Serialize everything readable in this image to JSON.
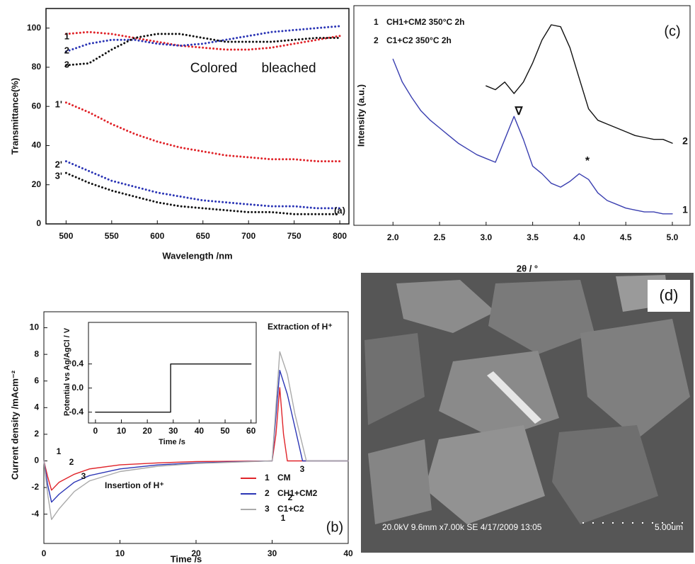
{
  "chart_data": [
    {
      "type": "line",
      "label": "(a)",
      "xlabel": "Wavelength /nm",
      "ylabel": "Transmittance(%)",
      "xlim": [
        478,
        810
      ],
      "ylim": [
        0,
        110
      ],
      "xticks": [
        500,
        550,
        600,
        650,
        700,
        750,
        800
      ],
      "yticks": [
        0,
        20,
        40,
        60,
        80,
        100
      ],
      "line_style": "dotted",
      "inset_labels": [
        "Colored",
        "bleached"
      ],
      "x": [
        500,
        525,
        550,
        575,
        600,
        625,
        650,
        675,
        700,
        725,
        750,
        775,
        800
      ],
      "series": [
        {
          "name": "1",
          "color": "#e0242a",
          "values": [
            97,
            98,
            97,
            95,
            93,
            91,
            90,
            89,
            89,
            90,
            92,
            94,
            96
          ]
        },
        {
          "name": "2",
          "color": "#2b35b5",
          "values": [
            88,
            92,
            94,
            94,
            92,
            91,
            92,
            94,
            96,
            98,
            99,
            100,
            101
          ]
        },
        {
          "name": "3",
          "color": "#111111",
          "values": [
            81,
            82,
            89,
            95,
            97,
            97,
            95,
            93,
            93,
            93,
            94,
            95,
            95
          ]
        },
        {
          "name": "1'",
          "color": "#e0242a",
          "values": [
            62,
            57,
            51,
            46,
            42,
            39,
            37,
            35,
            34,
            33,
            33,
            32,
            32
          ]
        },
        {
          "name": "2'",
          "color": "#2b35b5",
          "values": [
            32,
            27,
            22,
            19,
            16,
            14,
            12,
            11,
            10,
            9,
            9,
            8,
            8
          ]
        },
        {
          "name": "3'",
          "color": "#111111",
          "values": [
            26,
            21,
            17,
            14,
            11,
            9,
            8,
            7,
            6,
            6,
            5,
            5,
            5
          ]
        }
      ]
    },
    {
      "type": "line",
      "label": "(c)",
      "xlabel": "2θ / °",
      "ylabel": "Intensity (a.u.)",
      "xlim": [
        1.58,
        5.19
      ],
      "ylim": [
        -5,
        110
      ],
      "xticks": [
        {
          "value": 2,
          "label": "2.0"
        },
        2.5,
        {
          "value": 3,
          "label": "3.0"
        },
        3.5,
        {
          "value": 4,
          "label": "4.0"
        },
        4.5,
        {
          "value": 5,
          "label": "5.0"
        }
      ],
      "line_style": "solid",
      "annotations": [
        "∇",
        "*"
      ],
      "series": [
        {
          "label": "1",
          "name": "CH1+CM2 350°C 2h",
          "color": "#3a3fb0",
          "x": [
            2.0,
            2.1,
            2.2,
            2.3,
            2.4,
            2.5,
            2.6,
            2.7,
            2.8,
            2.9,
            3.0,
            3.1,
            3.2,
            3.3,
            3.4,
            3.5,
            3.6,
            3.7,
            3.8,
            3.9,
            4.0,
            4.1,
            4.2,
            4.3,
            4.4,
            4.5,
            4.6,
            4.7,
            4.8,
            4.9,
            5.0
          ],
          "values": [
            82,
            70,
            62,
            55,
            50,
            46,
            42,
            38,
            35,
            32,
            30,
            28,
            40,
            52,
            40,
            26,
            22,
            17,
            15,
            18,
            22,
            19,
            12,
            8,
            6,
            4,
            3,
            2,
            2,
            1,
            1
          ]
        },
        {
          "label": "2",
          "name": "C1+C2 350°C 2h",
          "color": "#111111",
          "x": [
            3.0,
            3.1,
            3.2,
            3.3,
            3.4,
            3.5,
            3.6,
            3.7,
            3.8,
            3.9,
            4.0,
            4.1,
            4.2,
            4.3,
            4.4,
            4.5,
            4.6,
            4.7,
            4.8,
            4.9,
            5.0
          ],
          "values": [
            68,
            66,
            70,
            64,
            70,
            80,
            92,
            100,
            99,
            88,
            72,
            56,
            50,
            48,
            46,
            44,
            42,
            41,
            40,
            40,
            38
          ]
        }
      ]
    },
    {
      "type": "line",
      "label": "(b)",
      "xlabel": "Time /s",
      "ylabel": "Current density /mAcm⁻²",
      "xlim": [
        0,
        40
      ],
      "ylim": [
        -6.2,
        11.2
      ],
      "xticks": [
        0,
        10,
        20,
        30,
        40
      ],
      "yticks": [
        -4,
        -2,
        0,
        2,
        4,
        6,
        8,
        10
      ],
      "line_style": "solid",
      "annotations": [
        "Extraction of H⁺",
        "Insertion of H⁺"
      ],
      "series": [
        {
          "label": "1",
          "name": "CM",
          "color": "#e0242a",
          "x": [
            0,
            0.5,
            1,
            2,
            4,
            6,
            10,
            15,
            20,
            30,
            30.5,
            31,
            31.5,
            32,
            40
          ],
          "values": [
            0,
            -1.2,
            -2.2,
            -1.6,
            -1,
            -0.6,
            -0.3,
            -0.15,
            -0.05,
            0,
            2,
            5.5,
            2,
            0,
            0
          ]
        },
        {
          "label": "2",
          "name": "CH1+CM2",
          "color": "#2b35b5",
          "x": [
            0,
            0.5,
            1,
            2,
            4,
            6,
            10,
            15,
            20,
            30,
            31,
            32,
            33,
            34,
            40
          ],
          "values": [
            0,
            -1.8,
            -3.1,
            -2.5,
            -1.6,
            -1.1,
            -0.6,
            -0.3,
            -0.15,
            0,
            6.8,
            5,
            2.5,
            0,
            0
          ]
        },
        {
          "label": "3",
          "name": "C1+C2",
          "color": "#aaaaaa",
          "x": [
            0,
            0.5,
            1,
            2,
            4,
            6,
            10,
            15,
            20,
            30,
            31,
            32,
            33,
            34.5,
            40
          ],
          "values": [
            0,
            -2.5,
            -4.4,
            -3.6,
            -2.3,
            -1.5,
            -0.8,
            -0.4,
            -0.2,
            0,
            8.2,
            6.5,
            3.5,
            0,
            0
          ]
        }
      ]
    },
    {
      "type": "line",
      "xlabel": "Time /s",
      "ylabel": "Potential vs Ag/AgCl / V",
      "xlim": [
        -2.7,
        62
      ],
      "ylim": [
        -0.58,
        1.09
      ],
      "xticks": [
        0,
        10,
        20,
        30,
        40,
        50,
        60
      ],
      "yticks": [
        -0.4,
        {
          "value": 0,
          "label": "0.0"
        },
        0.4
      ],
      "line_style": "solid",
      "series": [
        {
          "color": "#111111",
          "x": [
            0,
            29,
            29,
            60
          ],
          "values": [
            -0.4,
            -0.4,
            0.4,
            0.4
          ]
        }
      ]
    }
  ],
  "image_d": {
    "label": "(d)",
    "caption": "20.0kV 9.6mm x7.00k SE  4/17/2009 13:05",
    "scale": "5.00um"
  }
}
